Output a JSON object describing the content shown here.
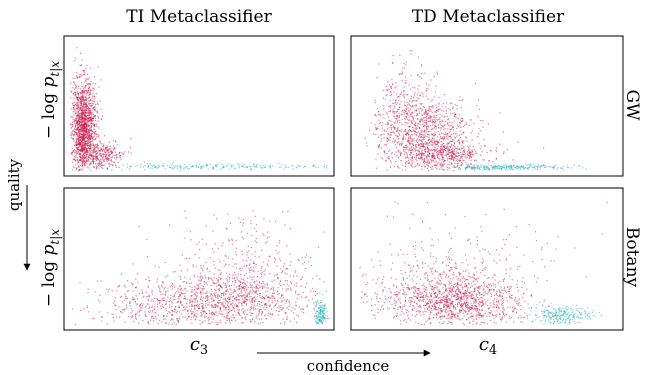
{
  "chart_data": {
    "type": "scatter",
    "columns": [
      "TI Metaclassifier",
      "TD Metaclassifier"
    ],
    "rows": [
      "GW",
      "Botany"
    ],
    "ylabel": "−log p_{t|x}",
    "ylabel_parts": {
      "minus_log": "− log ",
      "p": "p",
      "sub": "t|x"
    },
    "xlabels": [
      {
        "base": "c",
        "sub": "3"
      },
      {
        "base": "c",
        "sub": "4"
      }
    ],
    "arrows": {
      "vertical": "quality",
      "horizontal": "confidence"
    },
    "axis_ticks": "none",
    "x_normalized": [
      0,
      1
    ],
    "y_normalized": [
      0,
      1
    ],
    "colors": {
      "majority": "#c8184a",
      "minority": "#1fb1bc"
    },
    "panels": [
      {
        "row": "GW",
        "column": "TI Metaclassifier",
        "clusters": [
          {
            "color": "majority",
            "n": 1500,
            "x": 0.05,
            "sx": 0.025,
            "y": 0.65,
            "sy": 0.18
          },
          {
            "color": "majority",
            "n": 300,
            "x": 0.12,
            "sx": 0.04,
            "y": 0.88,
            "sy": 0.06
          },
          {
            "color": "minority",
            "n": 220,
            "x": 0.55,
            "sx": 0.25,
            "y": 0.97,
            "sy": 0.012
          }
        ]
      },
      {
        "row": "GW",
        "column": "TD Metaclassifier",
        "clusters": [
          {
            "color": "majority",
            "n": 900,
            "x": 0.25,
            "sx": 0.09,
            "y": 0.7,
            "sy": 0.15
          },
          {
            "color": "majority",
            "n": 500,
            "x": 0.33,
            "sx": 0.09,
            "y": 0.88,
            "sy": 0.06
          },
          {
            "color": "majority",
            "n": 200,
            "x": 0.18,
            "sx": 0.05,
            "y": 0.45,
            "sy": 0.16
          },
          {
            "color": "minority",
            "n": 250,
            "x": 0.58,
            "sx": 0.12,
            "y": 0.975,
            "sy": 0.01
          }
        ]
      },
      {
        "row": "Botany",
        "column": "TI Metaclassifier",
        "clusters": [
          {
            "color": "majority",
            "n": 900,
            "x": 0.66,
            "sx": 0.14,
            "y": 0.78,
            "sy": 0.13
          },
          {
            "color": "majority",
            "n": 550,
            "x": 0.4,
            "sx": 0.17,
            "y": 0.85,
            "sy": 0.1
          },
          {
            "color": "majority",
            "n": 150,
            "x": 0.65,
            "sx": 0.15,
            "y": 0.45,
            "sy": 0.16
          },
          {
            "color": "minority",
            "n": 160,
            "x": 0.97,
            "sx": 0.012,
            "y": 0.92,
            "sy": 0.06
          }
        ]
      },
      {
        "row": "Botany",
        "column": "TD Metaclassifier",
        "clusters": [
          {
            "color": "majority",
            "n": 1000,
            "x": 0.38,
            "sx": 0.13,
            "y": 0.83,
            "sy": 0.09
          },
          {
            "color": "majority",
            "n": 350,
            "x": 0.3,
            "sx": 0.15,
            "y": 0.7,
            "sy": 0.14
          },
          {
            "color": "majority",
            "n": 120,
            "x": 0.45,
            "sx": 0.18,
            "y": 0.45,
            "sy": 0.18
          },
          {
            "color": "minority",
            "n": 230,
            "x": 0.78,
            "sx": 0.06,
            "y": 0.93,
            "sy": 0.035
          }
        ]
      }
    ]
  }
}
